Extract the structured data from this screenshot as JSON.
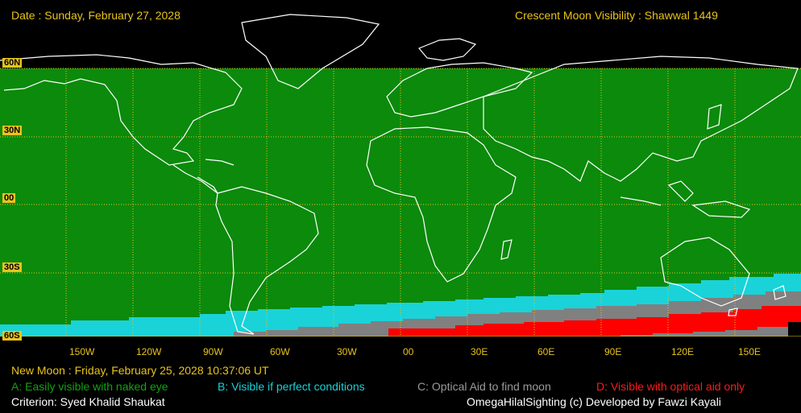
{
  "header": {
    "date": "Date : Sunday, February 27, 2028",
    "title": "Crescent Moon Visibility : Shawwal  1449"
  },
  "lat_labels": [
    "60N",
    "30N",
    "00",
    "30S",
    "60S"
  ],
  "lon_labels": [
    "150W",
    "120W",
    "90W",
    "60W",
    "30W",
    "00",
    "30E",
    "60E",
    "90E",
    "120E",
    "150E"
  ],
  "footer": {
    "new_moon": "New Moon : Friday, February 25, 2028  10:37:06  UT",
    "legend_a": "A: Easily visible with naked eye",
    "legend_b": "B: Visible if perfect conditions",
    "legend_c": "C: Optical Aid to find moon",
    "legend_d": "D: Visible with optical aid only",
    "criterion": "Criterion: Syed Khalid Shaukat",
    "credit": "OmegaHilalSighting  (c)  Developed by Fawzi Kayali"
  },
  "colors": {
    "zone_a": "#0b8a0b",
    "zone_b": "#19d3d8",
    "zone_c": "#808080",
    "zone_d": "#ff0000",
    "label": "#e8c31c",
    "grid": "#e8c31c",
    "coast": "#ffffff"
  }
}
